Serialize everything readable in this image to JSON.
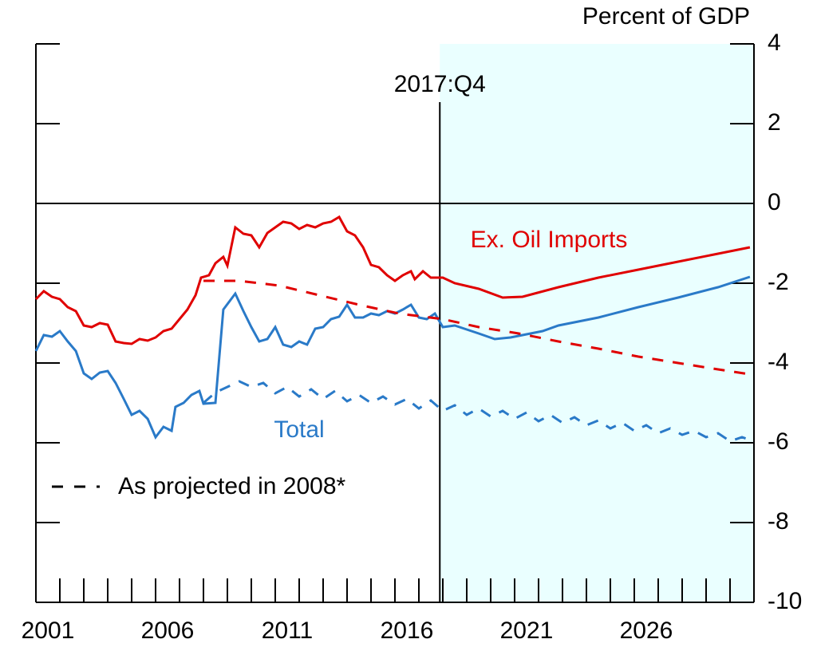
{
  "chart_data": {
    "type": "line",
    "y_axis_label": "Percent of GDP",
    "xlim": [
      2001,
      2031
    ],
    "xticks": [
      2001,
      2006,
      2011,
      2016,
      2021,
      2026
    ],
    "xminor_ticks": [
      2002,
      2003,
      2004,
      2005,
      2007,
      2008,
      2009,
      2010,
      2012,
      2013,
      2014,
      2015,
      2017,
      2018,
      2019,
      2020,
      2022,
      2023,
      2024,
      2025,
      2027,
      2028,
      2029,
      2030
    ],
    "ylim": [
      -10,
      4
    ],
    "yticks": [
      4,
      2,
      0,
      -2,
      -4,
      -6,
      -8,
      -10
    ],
    "zero_line": 0,
    "projection_start": {
      "x": 2017.875,
      "label": "2017:Q4",
      "shade_color": "#eaffff"
    },
    "legend": {
      "label": "As projected in 2008*",
      "color": "#000000"
    },
    "series": [
      {
        "name": "Ex. Oil Imports",
        "color": "#e00000",
        "dash": false,
        "x": [
          2001.0,
          2001.33,
          2001.67,
          2002.0,
          2002.33,
          2002.67,
          2003.0,
          2003.33,
          2003.67,
          2004.0,
          2004.33,
          2004.67,
          2005.0,
          2005.33,
          2005.67,
          2006.0,
          2006.33,
          2006.67,
          2007.0,
          2007.33,
          2007.67,
          2007.9,
          2008.23,
          2008.5,
          2008.83,
          2009.0,
          2009.33,
          2009.67,
          2010.0,
          2010.33,
          2010.67,
          2011.0,
          2011.33,
          2011.67,
          2012.0,
          2012.33,
          2012.67,
          2013.0,
          2013.33,
          2013.67,
          2014.0,
          2014.33,
          2014.67,
          2015.0,
          2015.33,
          2015.67,
          2016.0,
          2016.33,
          2016.67,
          2016.83,
          2017.17,
          2017.5,
          2018.0,
          2018.5,
          2019.5,
          2020.5,
          2021.33,
          2022.83,
          2024.5,
          2026.17,
          2027.83,
          2029.5,
          2030.83
        ],
        "values": [
          -2.4,
          -2.2,
          -2.34,
          -2.4,
          -2.6,
          -2.7,
          -3.06,
          -3.1,
          -3.0,
          -3.04,
          -3.46,
          -3.5,
          -3.52,
          -3.4,
          -3.44,
          -3.36,
          -3.2,
          -3.14,
          -2.9,
          -2.66,
          -2.3,
          -1.86,
          -1.8,
          -1.5,
          -1.34,
          -1.56,
          -0.6,
          -0.76,
          -0.8,
          -1.1,
          -0.74,
          -0.6,
          -0.46,
          -0.5,
          -0.64,
          -0.54,
          -0.6,
          -0.5,
          -0.46,
          -0.34,
          -0.7,
          -0.8,
          -1.1,
          -1.54,
          -1.6,
          -1.8,
          -1.94,
          -1.8,
          -1.7,
          -1.9,
          -1.7,
          -1.86,
          -1.86,
          -2.0,
          -2.14,
          -2.36,
          -2.34,
          -2.1,
          -1.86,
          -1.66,
          -1.46,
          -1.26,
          -1.1
        ]
      },
      {
        "name": "Total",
        "color": "#2a7ac8",
        "dash": false,
        "x": [
          2001.0,
          2001.33,
          2001.67,
          2002.0,
          2002.33,
          2002.67,
          2003.0,
          2003.33,
          2003.67,
          2004.0,
          2004.33,
          2004.67,
          2005.0,
          2005.33,
          2005.67,
          2006.0,
          2006.33,
          2006.67,
          2006.83,
          2007.17,
          2007.5,
          2007.83,
          2008.0,
          2008.5,
          2008.83,
          2009.33,
          2009.67,
          2010.0,
          2010.33,
          2010.67,
          2011.0,
          2011.33,
          2011.67,
          2012.0,
          2012.33,
          2012.67,
          2013.0,
          2013.33,
          2013.67,
          2014.0,
          2014.33,
          2014.67,
          2015.0,
          2015.33,
          2015.67,
          2016.0,
          2016.33,
          2016.67,
          2017.0,
          2017.33,
          2017.67,
          2018.0,
          2018.5,
          2019.5,
          2020.17,
          2020.83,
          2022.17,
          2022.83,
          2024.5,
          2026.17,
          2027.83,
          2029.5,
          2030.83
        ],
        "values": [
          -3.7,
          -3.3,
          -3.34,
          -3.2,
          -3.46,
          -3.7,
          -4.26,
          -4.4,
          -4.24,
          -4.2,
          -4.5,
          -4.9,
          -5.3,
          -5.2,
          -5.4,
          -5.86,
          -5.6,
          -5.7,
          -5.1,
          -5.0,
          -4.8,
          -4.7,
          -5.02,
          -5.0,
          -2.66,
          -2.26,
          -2.7,
          -3.1,
          -3.46,
          -3.4,
          -3.1,
          -3.54,
          -3.6,
          -3.46,
          -3.54,
          -3.14,
          -3.1,
          -2.9,
          -2.84,
          -2.54,
          -2.86,
          -2.86,
          -2.76,
          -2.8,
          -2.7,
          -2.76,
          -2.66,
          -2.54,
          -2.86,
          -2.9,
          -2.76,
          -3.1,
          -3.06,
          -3.26,
          -3.4,
          -3.36,
          -3.2,
          -3.06,
          -2.86,
          -2.6,
          -2.36,
          -2.1,
          -1.84
        ]
      },
      {
        "color": "#e00000",
        "dash": true,
        "x": [
          2008.0,
          2009.5,
          2011.17,
          2012.83,
          2014.5,
          2016.17,
          2018.0,
          2019.5,
          2021.17,
          2022.83,
          2024.5,
          2026.17,
          2027.83,
          2029.5,
          2031.0
        ],
        "values": [
          -1.94,
          -1.94,
          -2.06,
          -2.3,
          -2.54,
          -2.76,
          -2.9,
          -3.1,
          -3.26,
          -3.46,
          -3.64,
          -3.84,
          -4.0,
          -4.16,
          -4.3
        ]
      },
      {
        "color": "#2a7ac8",
        "dash": true,
        "x": [
          2008.0,
          2008.5,
          2009.0,
          2009.5,
          2010.0,
          2010.5,
          2011.0,
          2011.5,
          2012.0,
          2012.5,
          2013.0,
          2013.5,
          2014.0,
          2014.5,
          2015.0,
          2015.5,
          2016.0,
          2016.5,
          2017.0,
          2017.5,
          2018.0,
          2018.5,
          2019.0,
          2019.5,
          2020.0,
          2020.5,
          2021.0,
          2021.5,
          2022.0,
          2022.5,
          2023.0,
          2023.5,
          2024.0,
          2024.5,
          2025.0,
          2025.5,
          2026.0,
          2026.5,
          2027.0,
          2027.5,
          2028.0,
          2028.5,
          2029.0,
          2029.5,
          2030.0,
          2030.5,
          2031.0
        ],
        "values": [
          -5.0,
          -4.74,
          -4.6,
          -4.46,
          -4.6,
          -4.5,
          -4.76,
          -4.6,
          -4.84,
          -4.66,
          -4.9,
          -4.7,
          -4.96,
          -4.8,
          -5.0,
          -4.84,
          -5.04,
          -4.9,
          -5.14,
          -4.94,
          -5.2,
          -5.06,
          -5.3,
          -5.14,
          -5.34,
          -5.2,
          -5.4,
          -5.24,
          -5.46,
          -5.3,
          -5.5,
          -5.36,
          -5.56,
          -5.44,
          -5.64,
          -5.5,
          -5.7,
          -5.56,
          -5.76,
          -5.64,
          -5.8,
          -5.7,
          -5.86,
          -5.76,
          -5.96,
          -5.86,
          -5.96
        ]
      }
    ]
  }
}
